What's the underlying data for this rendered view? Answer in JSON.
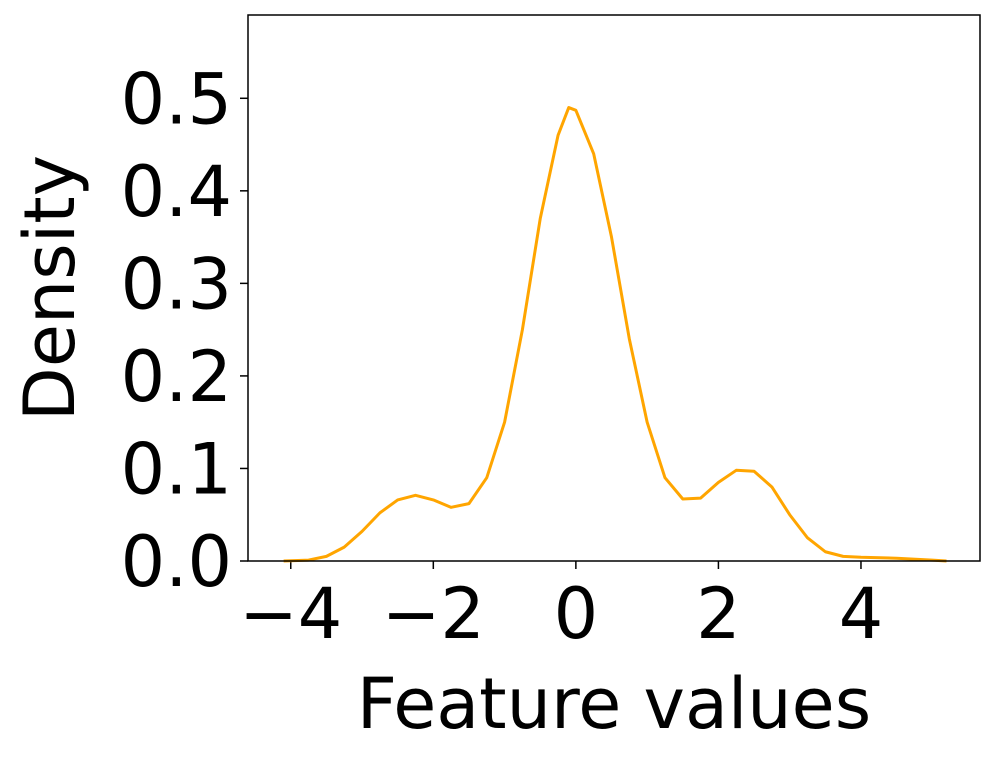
{
  "chart_data": {
    "type": "line",
    "x_label": "Feature values",
    "y_label": "Density",
    "x": [
      -4.1,
      -3.75,
      -3.5,
      -3.25,
      -3.0,
      -2.75,
      -2.5,
      -2.25,
      -2.0,
      -1.75,
      -1.5,
      -1.25,
      -1.0,
      -0.75,
      -0.5,
      -0.25,
      -0.1,
      0.0,
      0.25,
      0.5,
      0.75,
      1.0,
      1.25,
      1.5,
      1.75,
      2.0,
      2.25,
      2.5,
      2.75,
      3.0,
      3.25,
      3.5,
      3.75,
      4.0,
      4.5,
      5.0,
      5.2
    ],
    "series": [
      {
        "color": "#ffa500",
        "values": [
          0.0,
          0.001,
          0.005,
          0.015,
          0.032,
          0.052,
          0.066,
          0.071,
          0.066,
          0.058,
          0.062,
          0.09,
          0.15,
          0.25,
          0.37,
          0.46,
          0.49,
          0.487,
          0.44,
          0.35,
          0.24,
          0.15,
          0.09,
          0.067,
          0.068,
          0.085,
          0.098,
          0.097,
          0.08,
          0.05,
          0.025,
          0.01,
          0.005,
          0.004,
          0.003,
          0.001,
          0.0
        ]
      }
    ],
    "xlim": [
      -4.6,
      5.67
    ],
    "ylim": [
      0,
      0.59
    ],
    "xticks": [
      {
        "value": -4,
        "label": "−4"
      },
      {
        "value": -2,
        "label": "−2"
      },
      0,
      2,
      4
    ],
    "yticks": [
      {
        "value": 0,
        "label": "0.0"
      },
      0.1,
      0.2,
      0.3,
      0.4,
      0.5
    ],
    "grid": false
  }
}
